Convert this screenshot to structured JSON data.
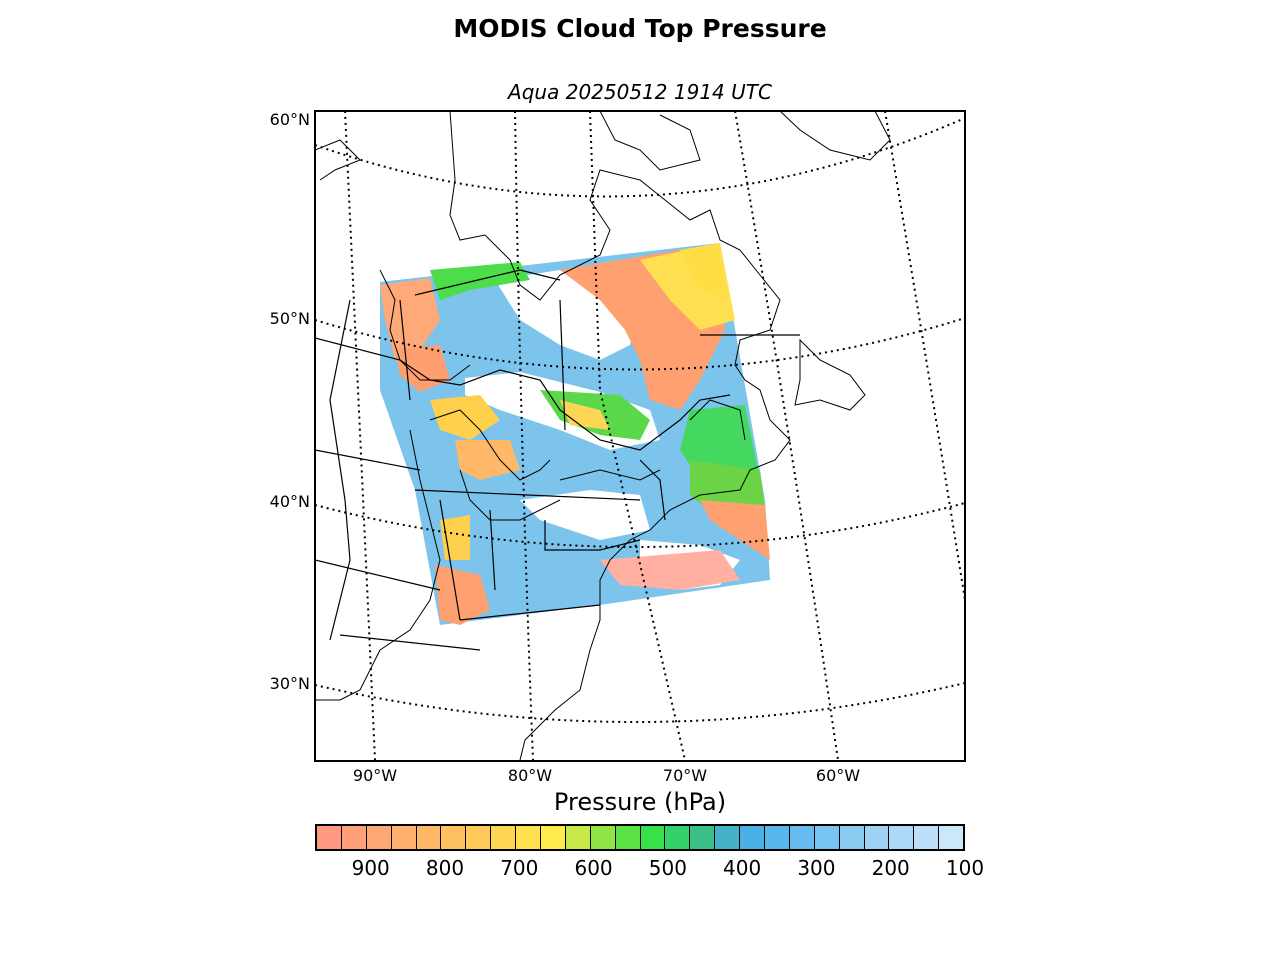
{
  "title": "MODIS Cloud Top Pressure",
  "subtitle": "Aqua 20250512 1914 UTC",
  "map": {
    "projection": "lambert-conformal",
    "lat_labels": [
      "60°N",
      "50°N",
      "40°N",
      "30°N"
    ],
    "lon_labels": [
      "90°W",
      "80°W",
      "70°W",
      "60°W"
    ],
    "gridline_style": "dotted",
    "background": "#ffffff",
    "coastline_color": "#000000"
  },
  "colorbar": {
    "label": "Pressure (hPa)",
    "range": [
      975,
      100
    ],
    "ticks": [
      "900",
      "800",
      "700",
      "600",
      "500",
      "400",
      "300",
      "200",
      "100"
    ],
    "colors": [
      "#ff9980",
      "#ffa07a",
      "#ffa873",
      "#ffb06d",
      "#ffb868",
      "#ffc060",
      "#ffc95a",
      "#ffd555",
      "#ffe050",
      "#ffec4a",
      "#c8e84a",
      "#90e644",
      "#5ce244",
      "#38e04a",
      "#36d06a",
      "#3cc08a",
      "#44b2c8",
      "#4ab0e6",
      "#58b6ec",
      "#66bcee",
      "#78c4f0",
      "#8acbf2",
      "#9dd2f4",
      "#aed9f6",
      "#bedff8",
      "#cce6fa"
    ]
  },
  "chart_data": {
    "type": "heatmap",
    "title": "MODIS Cloud Top Pressure",
    "subtitle": "Aqua 20250512 1914 UTC",
    "colorbar_label": "Pressure (hPa)",
    "colorbar_range": [
      975,
      100
    ],
    "colorbar_ticks": [
      900,
      800,
      700,
      600,
      500,
      400,
      300,
      200,
      100
    ],
    "lat_ticks": [
      "60°N",
      "50°N",
      "40°N",
      "30°N"
    ],
    "lon_ticks": [
      "90°W",
      "80°W",
      "70°W",
      "60°W"
    ]
  }
}
